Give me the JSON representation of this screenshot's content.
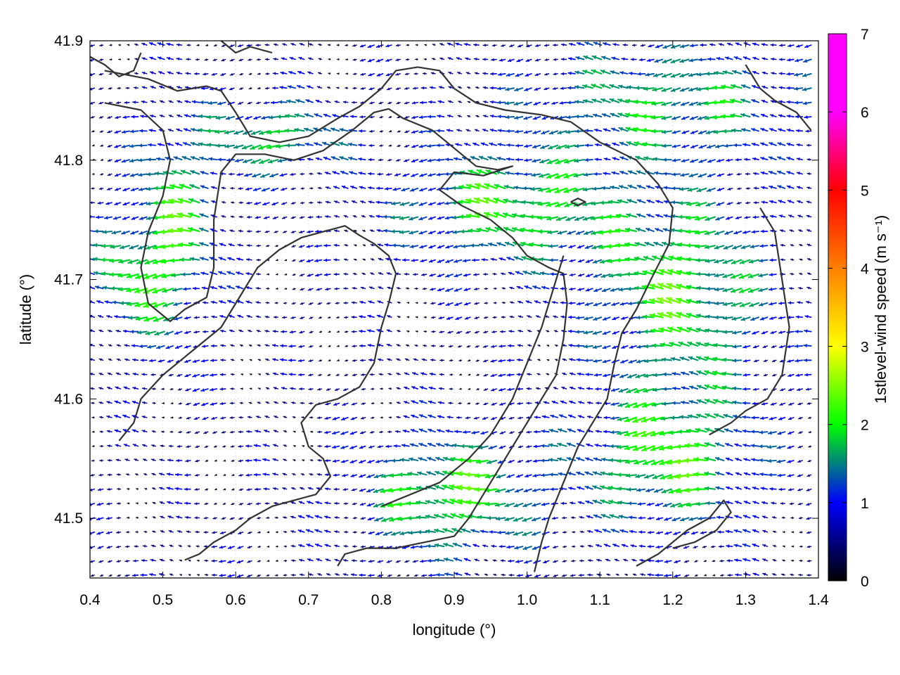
{
  "chart_data": {
    "type": "vector-field",
    "xlabel": "longitude (°)",
    "ylabel": "latitude (°)",
    "colorbar_label": "1stlevel-wind speed (m s⁻¹)",
    "xlim": [
      0.4,
      1.4
    ],
    "ylim": [
      41.45,
      41.9
    ],
    "xticks": [
      "0.4",
      "0.5",
      "0.6",
      "0.7",
      "0.8",
      "0.9",
      "1.0",
      "1.1",
      "1.2",
      "1.3",
      "1.4"
    ],
    "yticks": [
      "41.5",
      "41.6",
      "41.7",
      "41.8",
      "41.9"
    ],
    "colorbar_range": [
      0,
      7
    ],
    "colorbar_ticks": [
      "0",
      "1",
      "2",
      "3",
      "4",
      "5",
      "6",
      "7"
    ],
    "colormap": [
      "#000000",
      "#0000ff",
      "#00ff00",
      "#ffff00",
      "#ff8000",
      "#ff0000",
      "#ff00ff"
    ],
    "grid": true,
    "wind_direction_deg": 180,
    "grid_spacing_deg": 0.012,
    "contour_color": "#333333",
    "contours": [
      [
        [
          0.42,
          41.875
        ],
        [
          0.48,
          41.868
        ],
        [
          0.52,
          41.858
        ],
        [
          0.56,
          41.862
        ],
        [
          0.58,
          41.858
        ],
        [
          0.6,
          41.84
        ],
        [
          0.62,
          41.82
        ],
        [
          0.66,
          41.815
        ],
        [
          0.7,
          41.82
        ],
        [
          0.74,
          41.835
        ],
        [
          0.77,
          41.845
        ],
        [
          0.8,
          41.86
        ],
        [
          0.82,
          41.875
        ],
        [
          0.85,
          41.878
        ],
        [
          0.88,
          41.875
        ],
        [
          0.9,
          41.86
        ],
        [
          0.93,
          41.848
        ],
        [
          0.97,
          41.842
        ],
        [
          1.02,
          41.838
        ],
        [
          1.06,
          41.832
        ],
        [
          1.1,
          41.815
        ],
        [
          1.15,
          41.8
        ],
        [
          1.18,
          41.78
        ],
        [
          1.2,
          41.76
        ],
        [
          1.195,
          41.73
        ],
        [
          1.17,
          41.7
        ],
        [
          1.15,
          41.675
        ],
        [
          1.13,
          41.655
        ],
        [
          1.12,
          41.63
        ],
        [
          1.11,
          41.6
        ],
        [
          1.09,
          41.58
        ],
        [
          1.07,
          41.56
        ],
        [
          1.05,
          41.53
        ],
        [
          1.03,
          41.5
        ],
        [
          1.02,
          41.48
        ],
        [
          1.01,
          41.455
        ]
      ],
      [
        [
          0.42,
          41.848
        ],
        [
          0.47,
          41.842
        ],
        [
          0.5,
          41.825
        ],
        [
          0.51,
          41.8
        ],
        [
          0.5,
          41.77
        ],
        [
          0.48,
          41.74
        ],
        [
          0.47,
          41.71
        ],
        [
          0.48,
          41.68
        ],
        [
          0.51,
          41.665
        ],
        [
          0.53,
          41.675
        ],
        [
          0.56,
          41.685
        ],
        [
          0.57,
          41.71
        ],
        [
          0.57,
          41.75
        ],
        [
          0.58,
          41.79
        ],
        [
          0.6,
          41.805
        ],
        [
          0.64,
          41.805
        ],
        [
          0.68,
          41.8
        ],
        [
          0.72,
          41.808
        ],
        [
          0.76,
          41.825
        ],
        [
          0.79,
          41.84
        ],
        [
          0.81,
          41.843
        ],
        [
          0.83,
          41.835
        ],
        [
          0.87,
          41.825
        ],
        [
          0.9,
          41.81
        ],
        [
          0.93,
          41.795
        ],
        [
          0.96,
          41.792
        ],
        [
          0.98,
          41.795
        ],
        [
          0.94,
          41.787
        ],
        [
          0.9,
          41.79
        ],
        [
          0.88,
          41.775
        ],
        [
          0.91,
          41.762
        ],
        [
          0.95,
          41.75
        ],
        [
          0.98,
          41.735
        ],
        [
          1.0,
          41.72
        ],
        [
          1.03,
          41.71
        ],
        [
          1.05,
          41.705
        ],
        [
          1.055,
          41.68
        ],
        [
          1.05,
          41.65
        ],
        [
          1.04,
          41.62
        ],
        [
          1.02,
          41.6
        ],
        [
          1.0,
          41.58
        ],
        [
          0.98,
          41.56
        ],
        [
          0.96,
          41.54
        ],
        [
          0.94,
          41.52
        ],
        [
          0.92,
          41.5
        ],
        [
          0.9,
          41.485
        ],
        [
          0.86,
          41.48
        ],
        [
          0.82,
          41.475
        ],
        [
          0.78,
          41.475
        ],
        [
          0.75,
          41.47
        ],
        [
          0.74,
          41.46
        ]
      ],
      [
        [
          0.44,
          41.565
        ],
        [
          0.46,
          41.58
        ],
        [
          0.47,
          41.6
        ],
        [
          0.5,
          41.62
        ],
        [
          0.54,
          41.64
        ],
        [
          0.58,
          41.66
        ],
        [
          0.61,
          41.69
        ],
        [
          0.63,
          41.71
        ],
        [
          0.66,
          41.725
        ],
        [
          0.69,
          41.735
        ],
        [
          0.72,
          41.74
        ],
        [
          0.75,
          41.745
        ],
        [
          0.77,
          41.737
        ],
        [
          0.79,
          41.73
        ],
        [
          0.81,
          41.72
        ],
        [
          0.82,
          41.705
        ],
        [
          0.81,
          41.68
        ],
        [
          0.8,
          41.66
        ],
        [
          0.79,
          41.63
        ],
        [
          0.77,
          41.61
        ],
        [
          0.74,
          41.6
        ],
        [
          0.71,
          41.595
        ],
        [
          0.69,
          41.58
        ],
        [
          0.7,
          41.56
        ],
        [
          0.72,
          41.55
        ],
        [
          0.73,
          41.535
        ],
        [
          0.71,
          41.52
        ],
        [
          0.68,
          41.515
        ],
        [
          0.65,
          41.51
        ],
        [
          0.62,
          41.5
        ],
        [
          0.6,
          41.49
        ],
        [
          0.57,
          41.48
        ],
        [
          0.55,
          41.47
        ],
        [
          0.53,
          41.465
        ]
      ],
      [
        [
          0.8,
          41.51
        ],
        [
          0.84,
          41.52
        ],
        [
          0.88,
          41.53
        ],
        [
          0.92,
          41.55
        ],
        [
          0.95,
          41.57
        ],
        [
          0.98,
          41.6
        ],
        [
          1.0,
          41.63
        ],
        [
          1.02,
          41.66
        ],
        [
          1.04,
          41.7
        ],
        [
          1.05,
          41.72
        ]
      ],
      [
        [
          1.15,
          41.46
        ],
        [
          1.18,
          41.47
        ],
        [
          1.22,
          41.49
        ],
        [
          1.25,
          41.5
        ],
        [
          1.27,
          41.515
        ],
        [
          1.28,
          41.505
        ],
        [
          1.26,
          41.49
        ],
        [
          1.23,
          41.48
        ],
        [
          1.2,
          41.475
        ]
      ],
      [
        [
          1.3,
          41.88
        ],
        [
          1.32,
          41.86
        ],
        [
          1.34,
          41.85
        ],
        [
          1.37,
          41.84
        ],
        [
          1.39,
          41.825
        ]
      ],
      [
        [
          0.36,
          41.9
        ],
        [
          0.39,
          41.89
        ],
        [
          0.42,
          41.88
        ],
        [
          0.44,
          41.87
        ],
        [
          0.46,
          41.875
        ],
        [
          0.47,
          41.89
        ]
      ],
      [
        [
          1.32,
          41.76
        ],
        [
          1.34,
          41.74
        ],
        [
          1.35,
          41.7
        ],
        [
          1.36,
          41.66
        ],
        [
          1.35,
          41.62
        ],
        [
          1.33,
          41.6
        ],
        [
          1.3,
          41.59
        ],
        [
          1.28,
          41.58
        ],
        [
          1.25,
          41.57
        ]
      ],
      [
        [
          0.58,
          41.9
        ],
        [
          0.6,
          41.89
        ],
        [
          0.62,
          41.895
        ],
        [
          0.65,
          41.89
        ]
      ],
      [
        [
          1.06,
          41.765
        ],
        [
          1.07,
          41.768
        ],
        [
          1.08,
          41.765
        ],
        [
          1.07,
          41.762
        ],
        [
          1.06,
          41.765
        ]
      ]
    ]
  }
}
